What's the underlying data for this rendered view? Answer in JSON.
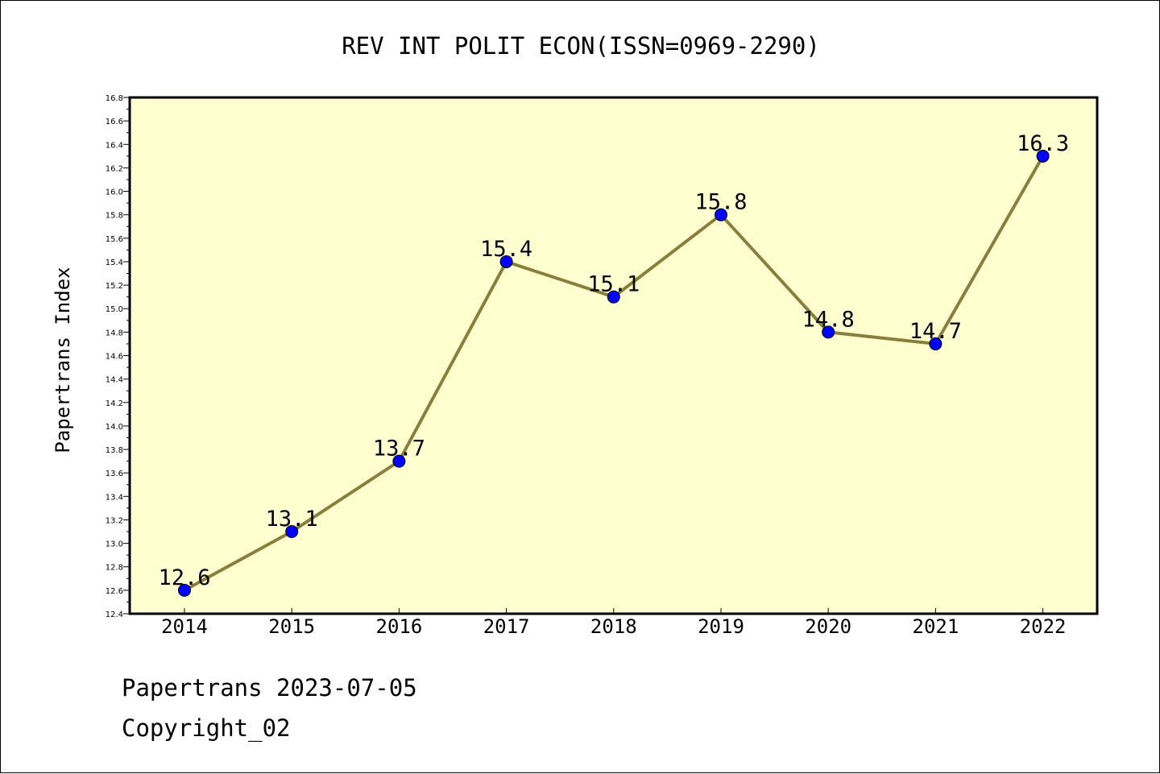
{
  "chart_data": {
    "type": "line",
    "title": "REV INT POLIT ECON(ISSN=0969-2290)",
    "ylabel": "Papertrans Index",
    "xlabel": "",
    "categories": [
      "2014",
      "2015",
      "2016",
      "2017",
      "2018",
      "2019",
      "2020",
      "2021",
      "2022"
    ],
    "series": [
      {
        "values": [
          12.6,
          13.1,
          13.7,
          15.4,
          15.1,
          15.8,
          14.8,
          14.7,
          16.3
        ],
        "data_labels": [
          "12.6",
          "13.1",
          "13.7",
          "15.4",
          "15.1",
          "15.8",
          "14.8",
          "14.7",
          "16.3"
        ]
      }
    ],
    "ylim": [
      12.4,
      16.8
    ],
    "yticks": [
      "12.4",
      "12.6",
      "12.8",
      "13.0",
      "13.2",
      "13.4",
      "13.6",
      "13.8",
      "14.0",
      "14.2",
      "14.4",
      "14.6",
      "14.8",
      "15.0",
      "15.2",
      "15.4",
      "15.6",
      "15.8",
      "16.0",
      "16.2",
      "16.4",
      "16.6",
      "16.8"
    ],
    "grid": false,
    "legend": "none",
    "colors": {
      "plot_background": "#ffffd0",
      "line": "#8b7d3a",
      "marker": "#0000ff"
    }
  },
  "footer": {
    "line1": "Papertrans 2023-07-05",
    "line2": "Copyright_02"
  }
}
